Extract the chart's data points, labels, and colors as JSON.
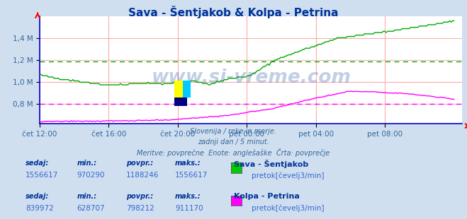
{
  "title": "Sava - Šentjakob & Kolpa - Petrina",
  "background_color": "#d0dff0",
  "plot_bg_color": "#ffffff",
  "subtitle_lines": [
    "Slovenija / reke in morje.",
    "zadnji dan / 5 minut.",
    "Meritve: povprečne  Enote: anglešaške  Črta: povprečje"
  ],
  "x_tick_labels": [
    "čet 12:00",
    "čet 16:00",
    "čet 20:00",
    "pet 00:00",
    "pet 04:00",
    "pet 08:00"
  ],
  "x_tick_positions": [
    0.0,
    0.1667,
    0.3333,
    0.5,
    0.6667,
    0.8333
  ],
  "y_tick_labels": [
    "0,8 M",
    "1,0 M",
    "1,2 M",
    "1,4 M"
  ],
  "y_tick_values": [
    800000,
    1000000,
    1200000,
    1400000
  ],
  "ylim": [
    615000,
    1600000
  ],
  "xlim": [
    0,
    1.02
  ],
  "grid_color": "#ffaaaa",
  "avg_line_green_y": 1188246,
  "avg_line_magenta_y": 798212,
  "sava_color": "#00aa00",
  "kolpa_color": "#ff00ff",
  "watermark": "www.si-vreme.com",
  "watermark_color": "#3366aa",
  "watermark_alpha": 0.3,
  "table_rows": [
    {
      "label": "Sava - Šentjakob",
      "sedaj": "1556617",
      "min": "970290",
      "povpr": "1188246",
      "maks": "1556617",
      "color": "#00cc00",
      "unit": "pretok[čevelj3/min]"
    },
    {
      "label": "Kolpa - Petrina",
      "sedaj": "839972",
      "min": "628707",
      "povpr": "798212",
      "maks": "911170",
      "color": "#ff00ff",
      "unit": "pretok[čevelj3/min]"
    }
  ],
  "axis_color": "#0000cc",
  "tick_color": "#336699"
}
